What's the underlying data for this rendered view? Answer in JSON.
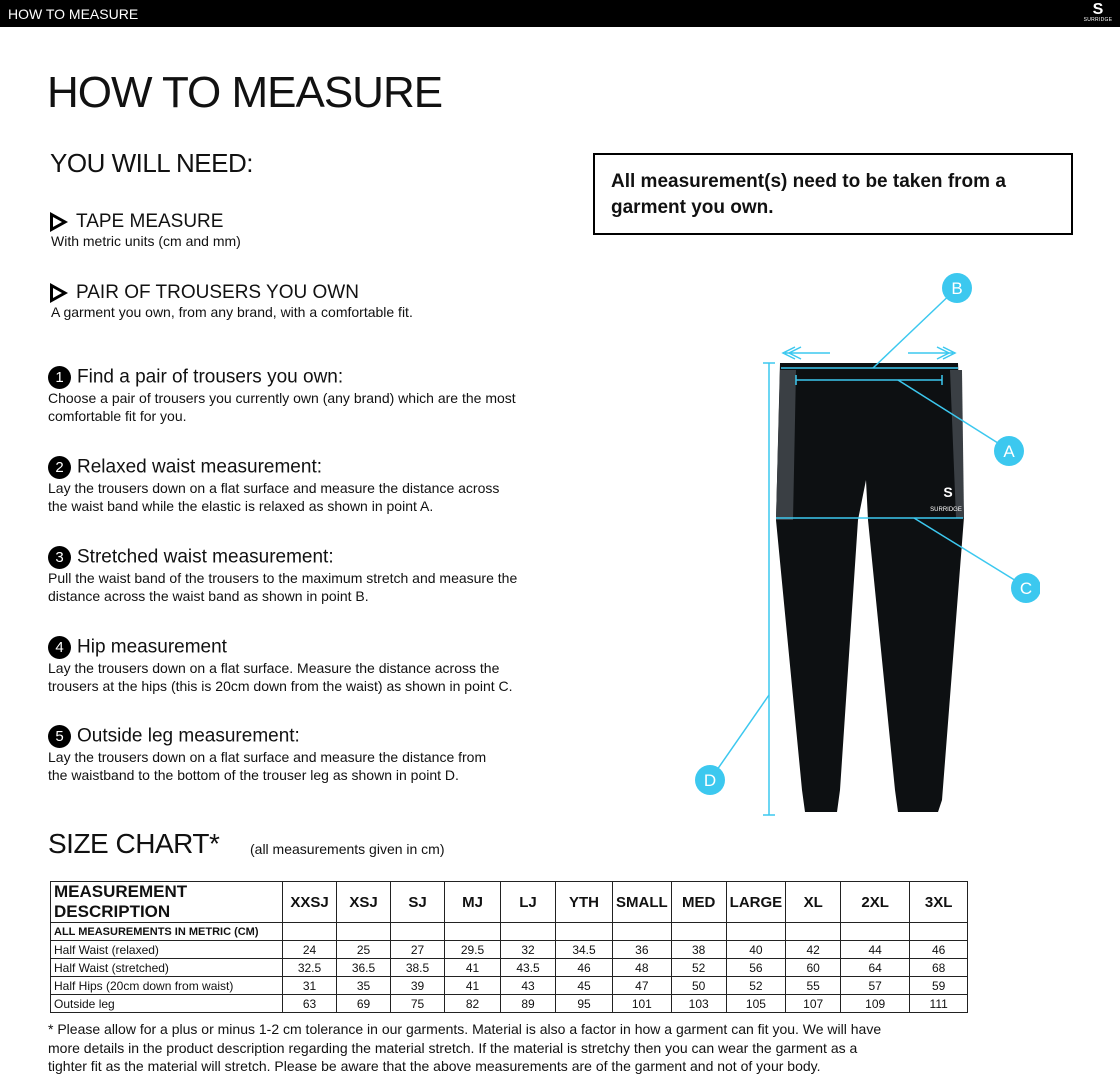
{
  "header": {
    "title": "HOW TO MEASURE",
    "logo_text": "SURRIDGE"
  },
  "page_title": "HOW TO MEASURE",
  "you_will_need": {
    "heading": "YOU WILL NEED:",
    "items": [
      {
        "title": "TAPE MEASURE",
        "subtitle": "With metric units (cm and mm)"
      },
      {
        "title": "PAIR OF TROUSERS YOU OWN",
        "subtitle": "A garment you own, from any brand, with a comfortable fit."
      }
    ]
  },
  "steps": [
    {
      "number": "1",
      "title": "Find a pair of trousers you own:",
      "lines": [
        "Choose a pair of trousers you currently own (any brand) which are the most",
        "comfortable fit for you."
      ]
    },
    {
      "number": "2",
      "title": "Relaxed waist measurement:",
      "lines": [
        "Lay the trousers down on a flat surface and measure the distance across",
        "the waist band while the elastic is relaxed as shown in point A."
      ]
    },
    {
      "number": "3",
      "title": "Stretched waist measurement:",
      "lines": [
        "Pull the waist band of the trousers to the maximum stretch and measure the",
        "distance across the waist band as shown in point B."
      ]
    },
    {
      "number": "4",
      "title": "Hip measurement",
      "lines": [
        "Lay the trousers down on a flat surface. Measure the distance across the",
        "trousers at the hips (this is 20cm down from the waist)  as shown in point C."
      ]
    },
    {
      "number": "5",
      "title": "Outside leg measurement:",
      "lines": [
        "Lay the trousers down on a flat surface and measure the distance from",
        "the waistband to the bottom of the trouser  leg as shown in point D."
      ]
    }
  ],
  "notice": "All measurement(s) need to be taken from a garment you own.",
  "diagram": {
    "labels": [
      "A",
      "B",
      "C",
      "D"
    ],
    "accent_color": "#3cc8ef",
    "logo_text": "SURRIDGE"
  },
  "size_chart": {
    "heading": "SIZE CHART*",
    "note": "(all measurements given in cm)",
    "columns": [
      "MEASUREMENT DESCRIPTION",
      "XXSJ",
      "XSJ",
      "SJ",
      "MJ",
      "LJ",
      "YTH",
      "SMALL",
      "MED",
      "LARGE",
      "XL",
      "2XL",
      "3XL"
    ],
    "rows": [
      {
        "label": "ALL MEASUREMENTS IN METRIC (CM)",
        "values": [
          "",
          "",
          "",
          "",
          "",
          "",
          "",
          "",
          "",
          "",
          "",
          ""
        ]
      },
      {
        "label": "Half Waist (relaxed)",
        "values": [
          "24",
          "25",
          "27",
          "29.5",
          "32",
          "34.5",
          "36",
          "38",
          "40",
          "42",
          "44",
          "46"
        ]
      },
      {
        "label": "Half Waist (stretched)",
        "values": [
          "32.5",
          "36.5",
          "38.5",
          "41",
          "43.5",
          "46",
          "48",
          "52",
          "56",
          "60",
          "64",
          "68"
        ]
      },
      {
        "label": "Half Hips (20cm down from waist)",
        "values": [
          "31",
          "35",
          "39",
          "41",
          "43",
          "45",
          "47",
          "50",
          "52",
          "55",
          "57",
          "59"
        ]
      },
      {
        "label": "Outside leg",
        "values": [
          "63",
          "69",
          "75",
          "82",
          "89",
          "95",
          "101",
          "103",
          "105",
          "107",
          "109",
          "111"
        ]
      }
    ]
  },
  "footnote": [
    "* Please allow for a plus or minus 1-2 cm tolerance in our garments. Material is also a factor in how a garment can fit you. We will have",
    "more details in the product description regarding the material stretch.  If the material is stretchy then you can wear the garment as a",
    "tighter fit as the material will stretch.  Please be aware that the above measurements are of the garment and not of your body."
  ]
}
